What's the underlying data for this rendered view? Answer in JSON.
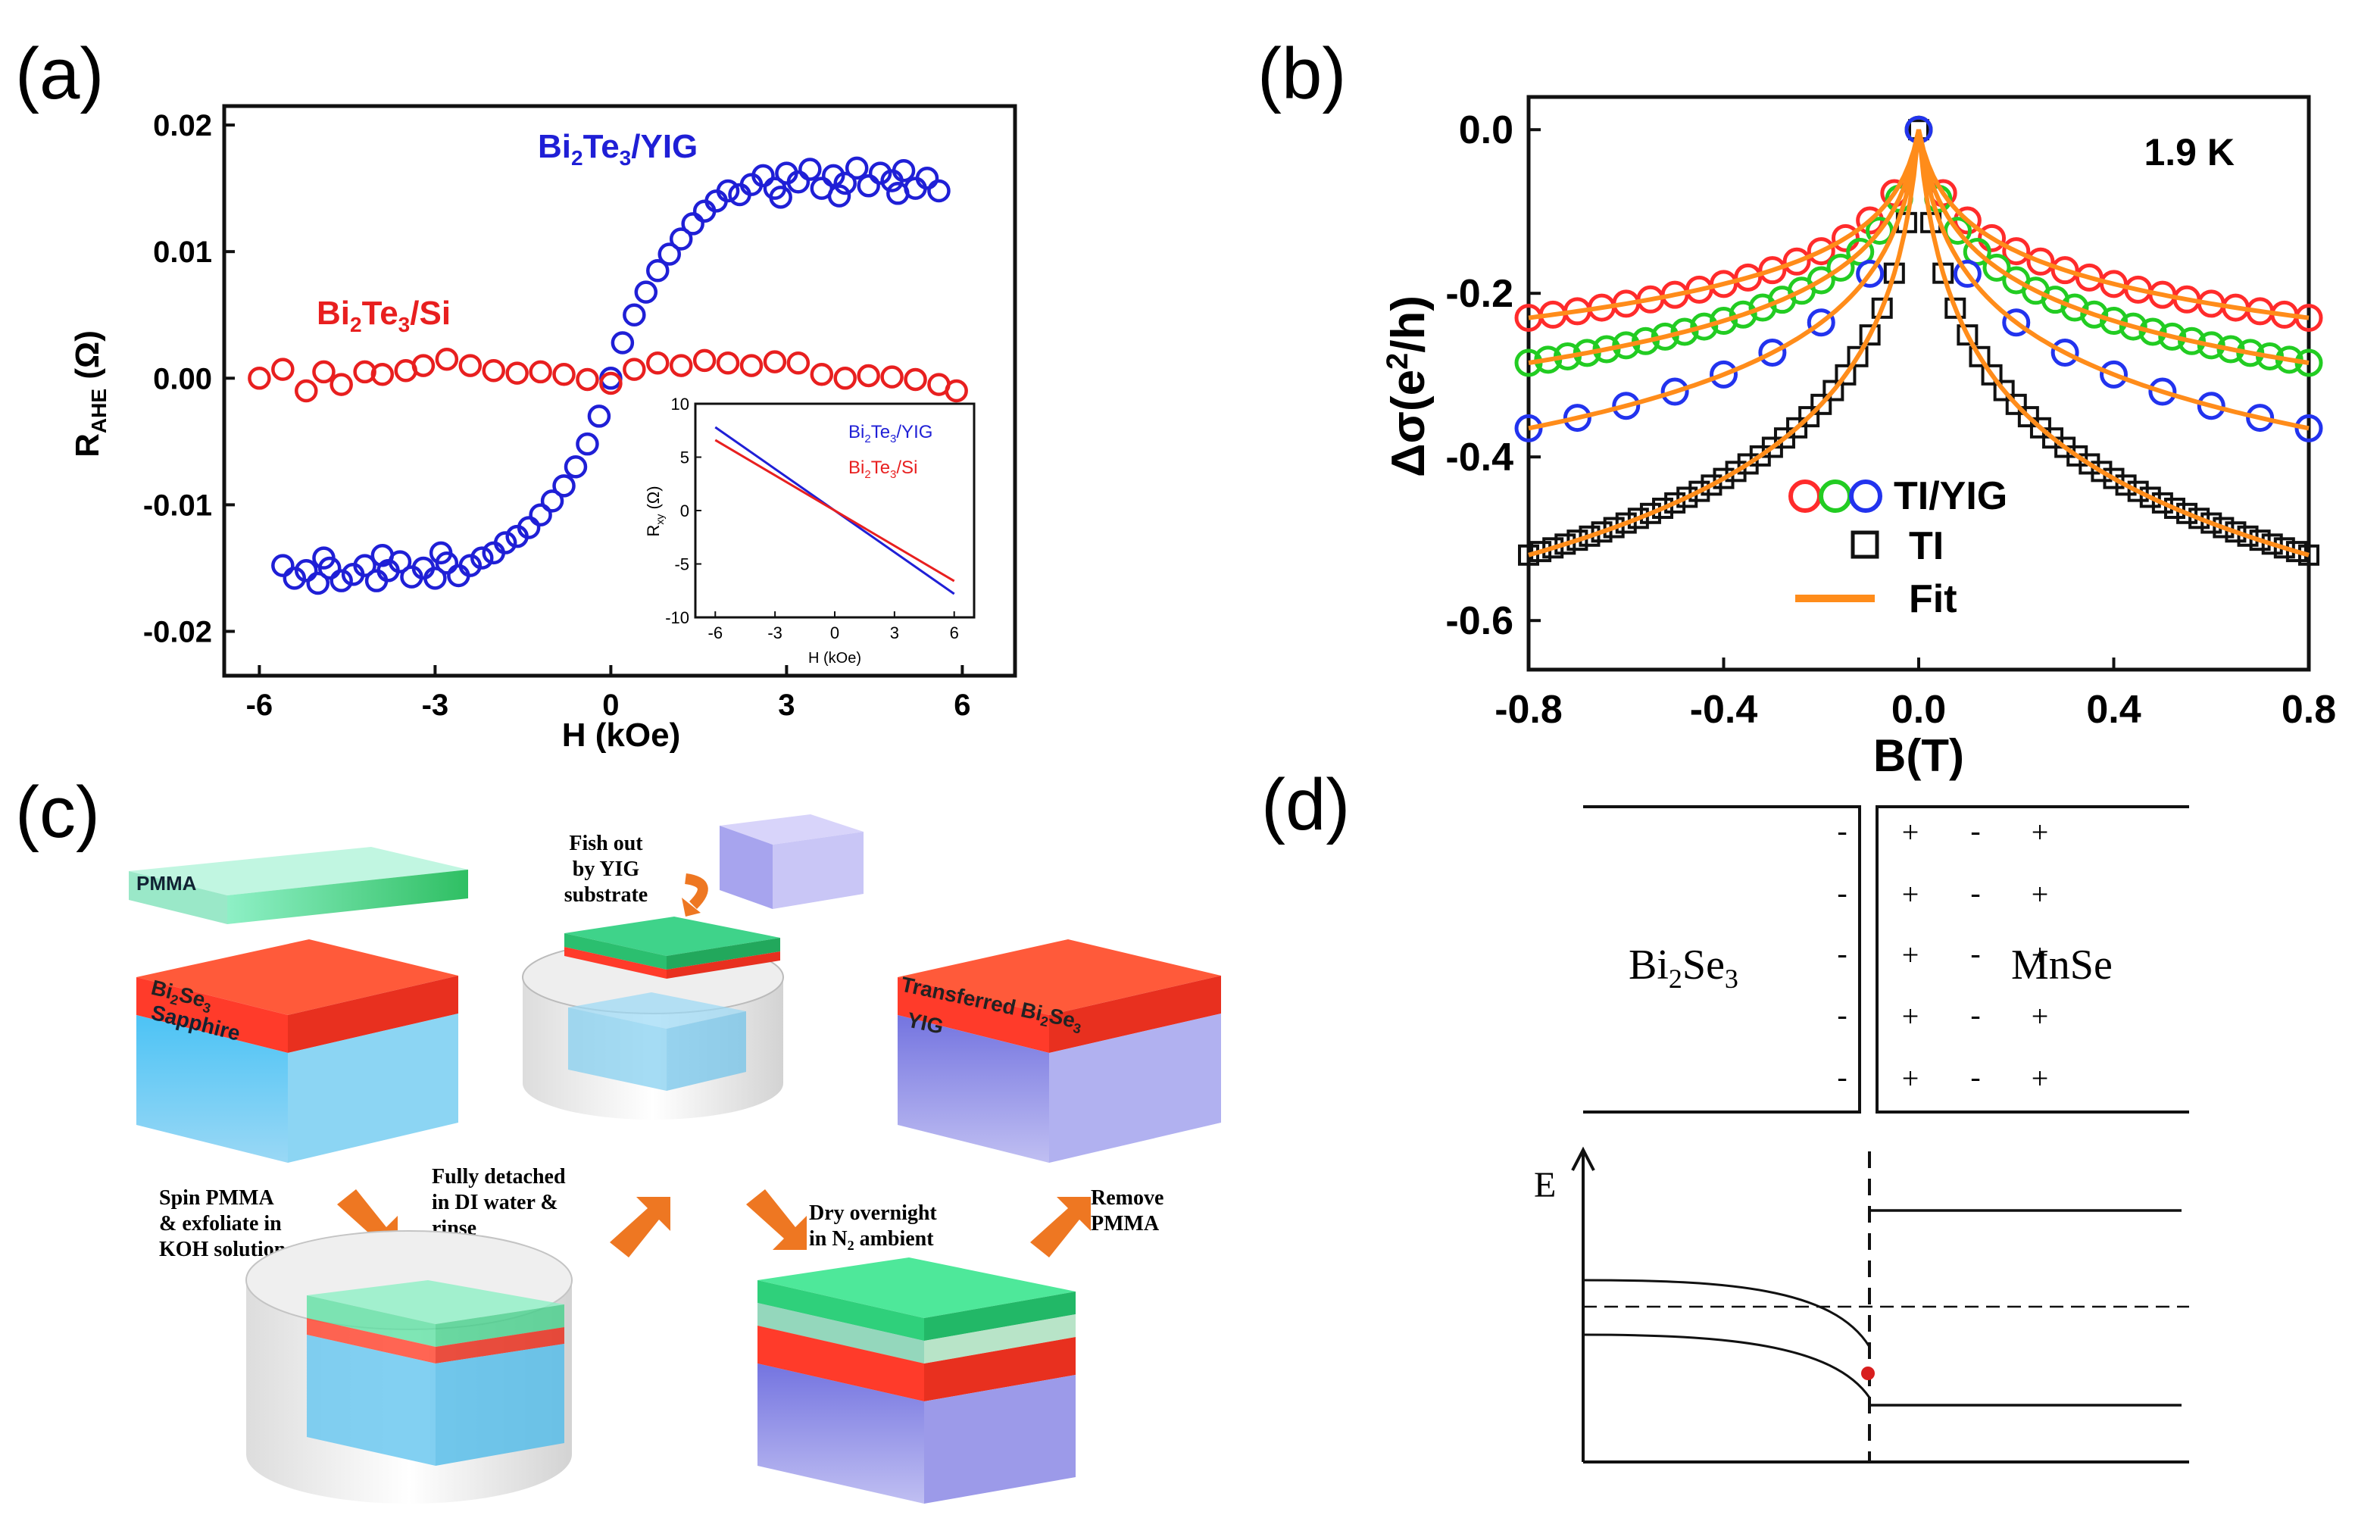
{
  "panels": {
    "a": {
      "label": "(a)"
    },
    "b": {
      "label": "(b)"
    },
    "c": {
      "label": "(c)"
    },
    "d": {
      "label": "(d)"
    }
  },
  "chart_data": [
    {
      "id": "a",
      "type": "scatter",
      "xlabel": "H (kOe)",
      "ylabel": "R",
      "ylabel_sub": "AHE",
      "ylabel_unit": " (Ω)",
      "xlim": [
        -6.6,
        6.9
      ],
      "ylim": [
        -0.0235,
        0.0215
      ],
      "xticks": [
        -6,
        -3,
        0,
        3,
        6
      ],
      "xticklabels": [
        "-6",
        "-3",
        "0",
        "3",
        "6"
      ],
      "yticks": [
        -0.02,
        -0.01,
        0.0,
        0.01,
        0.02
      ],
      "yticklabels": [
        "-0.02",
        "-0.01",
        "0.00",
        "0.01",
        "0.02"
      ],
      "series": [
        {
          "name": "Bi2Te3/YIG",
          "label_parts": [
            "Bi",
            "2",
            "Te",
            "3",
            "/YIG"
          ],
          "color": "#1f1fd6",
          "marker": "circle",
          "points": [
            [
              -5.6,
              -0.0148
            ],
            [
              -5.4,
              -0.0158
            ],
            [
              -5.2,
              -0.0152
            ],
            [
              -5.0,
              -0.0162
            ],
            [
              -4.8,
              -0.015
            ],
            [
              -4.6,
              -0.016
            ],
            [
              -4.4,
              -0.0155
            ],
            [
              -4.2,
              -0.0148
            ],
            [
              -4.0,
              -0.016
            ],
            [
              -3.8,
              -0.0152
            ],
            [
              -3.6,
              -0.0145
            ],
            [
              -3.4,
              -0.0157
            ],
            [
              -3.2,
              -0.015
            ],
            [
              -3.0,
              -0.0158
            ],
            [
              -2.8,
              -0.0146
            ],
            [
              -2.6,
              -0.0156
            ],
            [
              -2.4,
              -0.0148
            ],
            [
              -2.2,
              -0.0142
            ],
            [
              -2.0,
              -0.0138
            ],
            [
              -1.8,
              -0.013
            ],
            [
              -1.6,
              -0.0125
            ],
            [
              -1.4,
              -0.0118
            ],
            [
              -1.2,
              -0.0108
            ],
            [
              -1.0,
              -0.0097
            ],
            [
              -0.8,
              -0.0085
            ],
            [
              -0.6,
              -0.007
            ],
            [
              -0.4,
              -0.0052
            ],
            [
              -0.2,
              -0.003
            ],
            [
              0.0,
              0.0
            ],
            [
              0.2,
              0.0028
            ],
            [
              0.4,
              0.005
            ],
            [
              0.6,
              0.0068
            ],
            [
              0.8,
              0.0085
            ],
            [
              1.0,
              0.0098
            ],
            [
              1.2,
              0.011
            ],
            [
              1.4,
              0.0122
            ],
            [
              1.6,
              0.0132
            ],
            [
              1.8,
              0.014
            ],
            [
              2.0,
              0.0148
            ],
            [
              2.2,
              0.0145
            ],
            [
              2.4,
              0.0153
            ],
            [
              2.6,
              0.016
            ],
            [
              2.8,
              0.015
            ],
            [
              3.0,
              0.0162
            ],
            [
              3.2,
              0.0155
            ],
            [
              3.4,
              0.0165
            ],
            [
              3.6,
              0.015
            ],
            [
              3.8,
              0.016
            ],
            [
              4.0,
              0.0154
            ],
            [
              4.2,
              0.0166
            ],
            [
              4.4,
              0.0152
            ],
            [
              4.6,
              0.0162
            ],
            [
              4.8,
              0.0156
            ],
            [
              5.0,
              0.0164
            ],
            [
              5.2,
              0.015
            ],
            [
              5.4,
              0.0158
            ],
            [
              5.6,
              0.0148
            ],
            [
              -4.9,
              -0.0142
            ],
            [
              -3.9,
              -0.014
            ],
            [
              -2.9,
              -0.0138
            ],
            [
              2.9,
              0.0143
            ],
            [
              3.9,
              0.0144
            ],
            [
              4.9,
              0.0146
            ]
          ]
        },
        {
          "name": "Bi2Te3/Si",
          "label_parts": [
            "Bi",
            "2",
            "Te",
            "3",
            "/Si"
          ],
          "color": "#e81f1f",
          "marker": "circle",
          "points": [
            [
              -6.0,
              0.0
            ],
            [
              -5.6,
              0.0007
            ],
            [
              -5.2,
              -0.001
            ],
            [
              -4.9,
              0.0005
            ],
            [
              -4.6,
              -0.0005
            ],
            [
              -4.2,
              0.0005
            ],
            [
              -3.9,
              0.0003
            ],
            [
              -3.5,
              0.0006
            ],
            [
              -3.2,
              0.001
            ],
            [
              -2.8,
              0.0015
            ],
            [
              -2.4,
              0.001
            ],
            [
              -2.0,
              0.0006
            ],
            [
              -1.6,
              0.0004
            ],
            [
              -1.2,
              0.0005
            ],
            [
              -0.8,
              0.0003
            ],
            [
              -0.4,
              -0.0001
            ],
            [
              0.0,
              -0.0004
            ],
            [
              0.4,
              0.0007
            ],
            [
              0.8,
              0.0012
            ],
            [
              1.2,
              0.001
            ],
            [
              1.6,
              0.0014
            ],
            [
              2.0,
              0.0012
            ],
            [
              2.4,
              0.001
            ],
            [
              2.8,
              0.0013
            ],
            [
              3.2,
              0.0012
            ],
            [
              3.6,
              0.0003
            ],
            [
              4.0,
              0.0
            ],
            [
              4.4,
              0.0002
            ],
            [
              4.8,
              0.0001
            ],
            [
              5.2,
              -0.0001
            ],
            [
              5.6,
              -0.0005
            ],
            [
              5.9,
              -0.001
            ]
          ]
        }
      ],
      "inset": {
        "xlabel": "H (kOe)",
        "ylabel": "R",
        "ylabel_sub": "xy",
        "ylabel_unit": " (Ω)",
        "xlim": [
          -7,
          7
        ],
        "ylim": [
          -10,
          10
        ],
        "xticks": [
          -6,
          -3,
          0,
          3,
          6
        ],
        "xticklabels": [
          "-6",
          "-3",
          "0",
          "3",
          "6"
        ],
        "yticks": [
          -10,
          -5,
          0,
          5,
          10
        ],
        "yticklabels": [
          "-10",
          "-5",
          "0",
          "5",
          "10"
        ],
        "series": [
          {
            "name": "Bi2Te3/YIG",
            "label_parts": [
              "Bi",
              "2",
              "Te",
              "3",
              "/YIG"
            ],
            "color": "#1f1fd6",
            "line": [
              [
                -6,
                7.8
              ],
              [
                6,
                -7.8
              ]
            ]
          },
          {
            "name": "Bi2Te3/Si",
            "label_parts": [
              "Bi",
              "2",
              "Te",
              "3",
              "/Si"
            ],
            "color": "#e81f1f",
            "line": [
              [
                -6,
                6.6
              ],
              [
                6,
                -6.6
              ]
            ]
          }
        ]
      }
    },
    {
      "id": "b",
      "type": "scatter",
      "xlabel": "B(T)",
      "ylabel": "Δσ(e",
      "ylabel_sup": "2",
      "ylabel_tail": "/h)",
      "xlim": [
        -0.8,
        0.8
      ],
      "ylim": [
        -0.66,
        0.04
      ],
      "xticks": [
        -0.8,
        -0.4,
        0.0,
        0.4,
        0.8
      ],
      "xticklabels": [
        "-0.8",
        "-0.4",
        "0.0",
        "0.4",
        "0.8"
      ],
      "yticks": [
        0.0,
        -0.2,
        -0.4,
        -0.6
      ],
      "yticklabels": [
        "0.0",
        "-0.2",
        "-0.4",
        "-0.6"
      ],
      "annotation": "1.9 K",
      "series": [
        {
          "name": "TI/YIG red",
          "color": "#ff2b2b",
          "marker": "circle",
          "param": 0.23
        },
        {
          "name": "TI/YIG green",
          "color": "#22cc22",
          "marker": "circle",
          "param": 0.285
        },
        {
          "name": "TI/YIG blue",
          "color": "#2233ee",
          "marker": "circle",
          "param": 0.365
        },
        {
          "name": "TI",
          "color": "#111111",
          "marker": "square",
          "param": 0.52
        },
        {
          "name": "Fit",
          "color": "#ff8c1a",
          "marker": "line"
        }
      ],
      "legend": [
        {
          "label": "TI/YIG",
          "markers": [
            "#ff2b2b",
            "#22cc22",
            "#2233ee"
          ],
          "kind": "circle"
        },
        {
          "label": "TI",
          "markers": [
            "#111111"
          ],
          "kind": "square"
        },
        {
          "label": "Fit",
          "markers": [
            "#ff8c1a"
          ],
          "kind": "line"
        }
      ]
    }
  ],
  "panel_c": {
    "pmma": "PMMA",
    "bi2se3": [
      "Bi",
      "2",
      "Se",
      "3"
    ],
    "sapphire": "Sapphire",
    "yig": "YIG",
    "transferred": [
      "Transferred Bi",
      "2",
      "Se",
      "3"
    ],
    "fish_out": [
      "Fish out",
      "by YIG",
      "substrate"
    ],
    "spin": [
      "Spin PMMA",
      "& exfoliate in",
      "KOH solution"
    ],
    "detached": [
      "Fully detached",
      "in DI water &",
      "rinse"
    ],
    "dry": [
      "Dry overnight",
      "in N",
      "2",
      " ambient"
    ],
    "remove": [
      "Remove",
      "PMMA"
    ]
  },
  "panel_d": {
    "left_material": [
      "Bi",
      "2",
      "Se",
      "3"
    ],
    "right_material": "MnSe",
    "minus": "-",
    "plus": "+",
    "energy_axis": "E"
  },
  "colors": {
    "red": "#ee3322",
    "green": "#2ecc71",
    "blue_substrate": "#35aee8",
    "yig_purple": "#8f8fe8",
    "orange": "#ee7722"
  }
}
